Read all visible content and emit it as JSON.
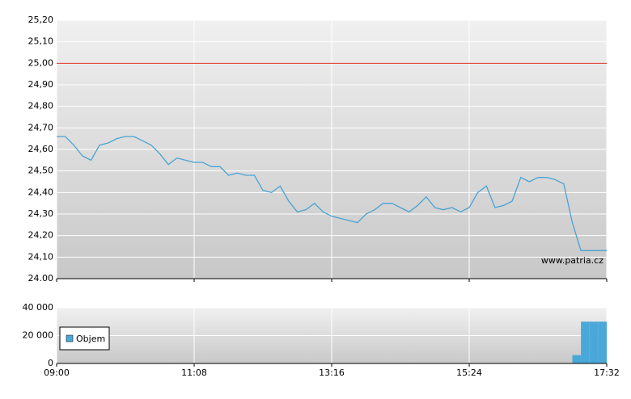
{
  "chart_data": [
    {
      "type": "line",
      "watermark": "www.patria.cz",
      "x": [
        "09:00",
        "09:08",
        "09:16",
        "09:24",
        "09:32",
        "09:40",
        "09:48",
        "09:56",
        "10:04",
        "10:12",
        "10:20",
        "10:28",
        "10:36",
        "10:44",
        "10:52",
        "11:00",
        "11:08",
        "11:16",
        "11:24",
        "11:32",
        "11:40",
        "11:48",
        "11:56",
        "12:04",
        "12:12",
        "12:20",
        "12:28",
        "12:36",
        "12:44",
        "12:52",
        "13:00",
        "13:08",
        "13:16",
        "13:24",
        "13:32",
        "13:40",
        "13:48",
        "13:56",
        "14:04",
        "14:12",
        "14:20",
        "14:28",
        "14:36",
        "14:44",
        "14:52",
        "15:00",
        "15:08",
        "15:16",
        "15:24",
        "15:32",
        "15:40",
        "15:48",
        "15:56",
        "16:04",
        "16:12",
        "16:20",
        "16:28",
        "16:36",
        "16:44",
        "16:52",
        "17:00",
        "17:08",
        "17:16",
        "17:24",
        "17:32"
      ],
      "series": [
        {
          "color": "#4aa3d3",
          "values": [
            24.66,
            24.66,
            24.62,
            24.57,
            24.55,
            24.62,
            24.63,
            24.65,
            24.66,
            24.66,
            24.64,
            24.62,
            24.58,
            24.53,
            24.56,
            24.55,
            24.54,
            24.54,
            24.52,
            24.52,
            24.48,
            24.49,
            24.48,
            24.48,
            24.41,
            24.4,
            24.43,
            24.36,
            24.31,
            24.32,
            24.35,
            24.31,
            24.29,
            24.28,
            24.27,
            24.26,
            24.3,
            24.32,
            24.35,
            24.35,
            24.33,
            24.31,
            24.34,
            24.38,
            24.33,
            24.32,
            24.33,
            24.31,
            24.33,
            24.4,
            24.43,
            24.33,
            24.34,
            24.36,
            24.47,
            24.45,
            24.47,
            24.47,
            24.46,
            24.44,
            24.26,
            24.13,
            24.13,
            24.13,
            24.13
          ]
        }
      ],
      "reference": {
        "value": 25,
        "color": "#e03020"
      },
      "xlim": [
        "09:00",
        "17:32"
      ],
      "ylim": [
        24,
        25.2
      ],
      "yticks": [
        {
          "value": 24,
          "label": "24.00"
        },
        {
          "value": 24.1,
          "label": "24,10"
        },
        {
          "value": 24.2,
          "label": "24,20"
        },
        {
          "value": 24.3,
          "label": "24,30"
        },
        {
          "value": 24.4,
          "label": "24,40"
        },
        {
          "value": 24.5,
          "label": "24,50"
        },
        {
          "value": 24.6,
          "label": "24,60"
        },
        {
          "value": 24.7,
          "label": "24,70"
        },
        {
          "value": 24.8,
          "label": "24,80"
        },
        {
          "value": 24.9,
          "label": "24,90"
        },
        {
          "value": 25,
          "label": "25,00"
        },
        {
          "value": 25.1,
          "label": "25,10"
        },
        {
          "value": 25.2,
          "label": "25,20"
        }
      ],
      "xticks": [
        "09:00",
        "11:08",
        "13:16",
        "15:24",
        "17:32"
      ],
      "grid": true
    },
    {
      "type": "bar",
      "x": [
        "17:00",
        "17:08",
        "17:16",
        "17:24"
      ],
      "series": [
        {
          "name": "Objem",
          "color": "#4aa8d8",
          "values": [
            6000,
            30000,
            30000,
            30000
          ]
        }
      ],
      "bar_width_minutes": 8,
      "xlim": [
        "09:00",
        "17:32"
      ],
      "ylim": [
        0,
        40000
      ],
      "yticks": [
        0,
        {
          "value": 20000,
          "label": "20 000"
        },
        {
          "value": 40000,
          "label": "40 000"
        }
      ],
      "xticks": [
        "09:00",
        "11:08",
        "13:16",
        "15:24",
        "17:32"
      ],
      "grid": true,
      "legend": "lower-left"
    }
  ]
}
